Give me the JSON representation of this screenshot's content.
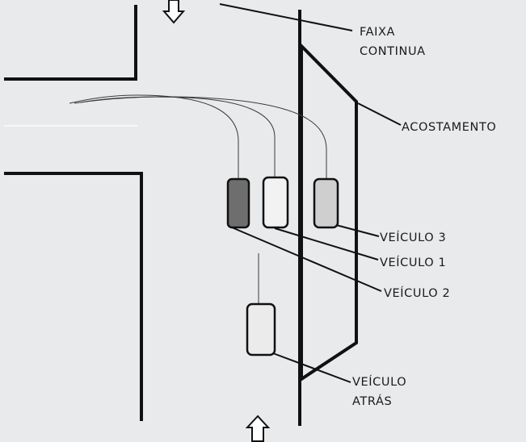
{
  "labels": {
    "faixa_line1": "FAIXA",
    "faixa_line2": "CONTINUA",
    "acostamento": "ACOSTAMENTO",
    "veiculo3": "VEÍCULO 3",
    "veiculo1": "VEÍCULO 1",
    "veiculo2": "VEÍCULO 2",
    "atras_line1": "VEÍCULO",
    "atras_line2": "ATRÁS"
  },
  "colors": {
    "background": "#e9eaec",
    "lines": "#111111",
    "vehicle_light_fill": "#f2f2f2",
    "vehicle_mid_fill": "#cfcfcf",
    "vehicle_dark_fill": "#6e6e6e"
  },
  "icons": {
    "top": "arrow-down-outline",
    "bottom": "arrow-up-outline"
  }
}
